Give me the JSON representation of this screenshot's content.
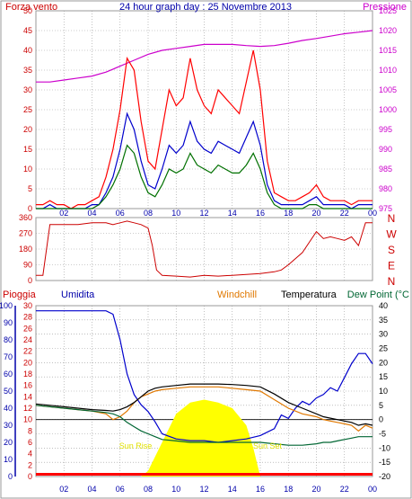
{
  "header": {
    "left": "Forza vento",
    "center": "24 hour graph day : 25 Novembre 2013",
    "right": "Pressione"
  },
  "bottom_header": {
    "rain": "Pioggia",
    "humidity": "Umidita",
    "windchill": "Windchill",
    "temperature": "Temperatura",
    "dewpoint": "Dew Point (°C"
  },
  "annotations": {
    "sunrise": "Sun Rise",
    "sunset": "Sun Set"
  },
  "colors": {
    "gust": "#ff0000",
    "avg_wind": "#0000cc",
    "speed": "#007000",
    "pressure": "#cc00cc",
    "direction": "#cc0000",
    "humidity": "#0000cc",
    "windchill": "#e07800",
    "temperature": "#000000",
    "dewpoint": "#006633",
    "rain": "#ff0000",
    "solar": "#ffff00",
    "grid": "#999999",
    "axis_blue": "#0000aa"
  },
  "chart_data": [
    {
      "type": "line",
      "title": "24 hour graph day : 25 Novembre 2013",
      "xlabel": "",
      "x_ticks": [
        "02",
        "04",
        "06",
        "08",
        "10",
        "12",
        "14",
        "16",
        "18",
        "20",
        "22",
        "00"
      ],
      "xlim": [
        0,
        24
      ],
      "y_left": {
        "label": "Forza vento",
        "ticks": [
          "0",
          "5",
          "10",
          "15",
          "20",
          "25",
          "30",
          "35",
          "40",
          "45",
          "50"
        ],
        "ylim": [
          0,
          50
        ]
      },
      "y_right": {
        "label": "Pressione",
        "ticks": [
          "975",
          "980",
          "985",
          "990",
          "995",
          "1000",
          "1005",
          "1010",
          "1015",
          "1020",
          "1025"
        ],
        "ylim": [
          975,
          1025
        ]
      },
      "series": [
        {
          "name": "Forza vento",
          "axis": "left",
          "x": [
            0,
            0.5,
            1,
            1.5,
            2,
            2.5,
            3,
            3.5,
            4,
            4.5,
            5,
            5.5,
            6,
            6.5,
            7,
            7.5,
            8,
            8.5,
            9,
            9.5,
            10,
            10.5,
            11,
            11.5,
            12,
            12.5,
            13,
            13.5,
            14,
            14.5,
            15,
            15.5,
            16,
            16.5,
            17,
            17.5,
            18,
            18.5,
            19,
            19.5,
            20,
            20.5,
            21,
            21.5,
            22,
            22.5,
            23,
            23.5,
            24
          ],
          "values": [
            1,
            1,
            2,
            1,
            1,
            0,
            1,
            1,
            2,
            3,
            8,
            15,
            25,
            38,
            35,
            22,
            12,
            10,
            20,
            30,
            26,
            28,
            38,
            30,
            26,
            24,
            30,
            28,
            26,
            24,
            32,
            40,
            30,
            12,
            4,
            3,
            2,
            2,
            3,
            4,
            6,
            3,
            2,
            2,
            2,
            1,
            2,
            2,
            2
          ]
        },
        {
          "name": "",
          "axis": "left",
          "x": [
            0,
            0.5,
            1,
            1.5,
            2,
            2.5,
            3,
            3.5,
            4,
            4.5,
            5,
            5.5,
            6,
            6.5,
            7,
            7.5,
            8,
            8.5,
            9,
            9.5,
            10,
            10.5,
            11,
            11.5,
            12,
            12.5,
            13,
            13.5,
            14,
            14.5,
            15,
            15.5,
            16,
            16.5,
            17,
            17.5,
            18,
            18.5,
            19,
            19.5,
            20,
            20.5,
            21,
            21.5,
            22,
            22.5,
            23,
            23.5,
            24
          ],
          "values": [
            0,
            0,
            1,
            0,
            0,
            0,
            0,
            0,
            1,
            1,
            4,
            8,
            15,
            24,
            20,
            12,
            6,
            5,
            10,
            16,
            14,
            16,
            22,
            17,
            15,
            14,
            17,
            16,
            15,
            14,
            18,
            22,
            16,
            6,
            2,
            1,
            1,
            1,
            1,
            2,
            3,
            1,
            1,
            1,
            1,
            0,
            1,
            1,
            1
          ]
        },
        {
          "name": "",
          "axis": "left",
          "x": [
            0,
            0.5,
            1,
            1.5,
            2,
            2.5,
            3,
            3.5,
            4,
            4.5,
            5,
            5.5,
            6,
            6.5,
            7,
            7.5,
            8,
            8.5,
            9,
            9.5,
            10,
            10.5,
            11,
            11.5,
            12,
            12.5,
            13,
            13.5,
            14,
            14.5,
            15,
            15.5,
            16,
            16.5,
            17,
            17.5,
            18,
            18.5,
            19,
            19.5,
            20,
            20.5,
            21,
            21.5,
            22,
            22.5,
            23,
            23.5,
            24
          ],
          "values": [
            0,
            0,
            0,
            0,
            0,
            0,
            0,
            0,
            0,
            1,
            3,
            6,
            10,
            16,
            14,
            8,
            4,
            3,
            6,
            10,
            9,
            10,
            14,
            11,
            10,
            9,
            11,
            10,
            9,
            9,
            11,
            14,
            10,
            4,
            1,
            0,
            0,
            0,
            0,
            1,
            1,
            0,
            0,
            0,
            0,
            0,
            0,
            0,
            0
          ]
        },
        {
          "name": "Pressione",
          "axis": "right",
          "x": [
            0,
            1,
            2,
            3,
            4,
            5,
            6,
            7,
            8,
            9,
            10,
            11,
            12,
            13,
            14,
            15,
            16,
            17,
            18,
            19,
            20,
            21,
            22,
            23,
            24
          ],
          "values": [
            1007,
            1007,
            1007.5,
            1008,
            1008.5,
            1009.5,
            1011,
            1012.5,
            1014,
            1015,
            1015.5,
            1016,
            1016.5,
            1016.5,
            1016.5,
            1016.2,
            1016,
            1016.2,
            1016.8,
            1017.5,
            1018,
            1018.6,
            1019.2,
            1019.6,
            1020
          ]
        }
      ]
    },
    {
      "type": "line",
      "xlim": [
        0,
        24
      ],
      "y_left": {
        "ticks": [
          "0",
          "90",
          "180",
          "270",
          "360"
        ],
        "ylim": [
          0,
          360
        ]
      },
      "y_right": {
        "ticks": [
          "N",
          "W",
          "S",
          "E",
          "N"
        ]
      },
      "series": [
        {
          "name": "",
          "x": [
            0,
            0.5,
            1,
            2,
            3,
            4,
            5,
            5.5,
            6,
            6.5,
            7,
            7.5,
            8,
            8.3,
            8.6,
            9,
            10,
            11,
            12,
            13,
            14,
            15,
            16,
            17,
            17.5,
            18,
            19,
            20,
            20.5,
            21,
            21.5,
            22,
            22.5,
            23,
            23.5,
            24
          ],
          "values": [
            30,
            30,
            320,
            320,
            320,
            330,
            330,
            320,
            330,
            340,
            330,
            320,
            300,
            200,
            60,
            30,
            25,
            20,
            30,
            25,
            30,
            35,
            40,
            50,
            60,
            90,
            160,
            280,
            240,
            250,
            240,
            230,
            250,
            200,
            330,
            330
          ]
        }
      ]
    },
    {
      "type": "line",
      "xlim": [
        0,
        24
      ],
      "y_left_outer": {
        "label": "Umidita",
        "ticks": [
          "0",
          "10",
          "20",
          "30",
          "40",
          "50",
          "60",
          "70",
          "80",
          "90",
          "100"
        ],
        "ylim": [
          0,
          100
        ]
      },
      "y_left_inner": {
        "label": "Pioggia",
        "ticks": [
          "0",
          "2",
          "4",
          "6",
          "8",
          "10",
          "12",
          "14",
          "16",
          "18",
          "20",
          "22",
          "24",
          "26",
          "28",
          "30"
        ],
        "ylim": [
          0,
          30
        ]
      },
      "y_right": {
        "ticks": [
          "-20",
          "-15",
          "-10",
          "-5",
          "0",
          "5",
          "10",
          "15",
          "20",
          "25",
          "30",
          "35",
          "40"
        ],
        "ylim": [
          -20,
          40
        ]
      },
      "x_ticks": [
        "02",
        "04",
        "06",
        "08",
        "10",
        "12",
        "14",
        "16",
        "18",
        "20",
        "22",
        "00"
      ],
      "series": [
        {
          "name": "Umidita",
          "axis": "left_outer",
          "x": [
            0,
            1,
            2,
            3,
            4,
            4.5,
            5,
            5.5,
            6,
            6.5,
            7,
            7.5,
            8,
            8.5,
            9,
            10,
            11,
            12,
            13,
            14,
            15,
            16,
            17,
            17.5,
            18,
            18.5,
            19,
            19.5,
            20,
            20.5,
            21,
            21.5,
            22,
            22.5,
            23,
            23.5,
            24
          ],
          "values": [
            97,
            97,
            97,
            97,
            97,
            97,
            97,
            95,
            80,
            60,
            48,
            42,
            38,
            32,
            25,
            22,
            21,
            21,
            20,
            21,
            22,
            24,
            28,
            36,
            34,
            40,
            44,
            42,
            46,
            48,
            52,
            50,
            58,
            66,
            72,
            72,
            66
          ]
        },
        {
          "name": "Temperatura",
          "axis": "right",
          "x": [
            0,
            1,
            2,
            3,
            4,
            5,
            5.5,
            6,
            6.5,
            7,
            7.5,
            8,
            8.5,
            9,
            10,
            11,
            12,
            13,
            14,
            15,
            16,
            17,
            18,
            19,
            20,
            20.5,
            21,
            21.5,
            22,
            22.5,
            23,
            23.5,
            24
          ],
          "values": [
            5.5,
            5,
            4.5,
            4,
            3.5,
            3.2,
            3,
            3.5,
            4.5,
            6,
            8,
            10,
            11,
            11.5,
            12,
            12.5,
            12.5,
            12.5,
            12.3,
            12,
            11.5,
            9,
            6,
            4,
            2,
            1,
            0.5,
            0,
            -0.5,
            -1,
            -2,
            -1.5,
            -2
          ]
        },
        {
          "name": "Windchill",
          "axis": "right",
          "x": [
            0,
            1,
            2,
            3,
            4,
            5,
            5.5,
            6,
            6.5,
            7,
            7.5,
            8,
            8.5,
            9,
            10,
            11,
            12,
            13,
            14,
            15,
            16,
            17,
            18,
            19,
            20,
            20.5,
            21,
            21.5,
            22,
            22.5,
            23,
            23.5,
            24
          ],
          "values": [
            5,
            4.5,
            4,
            3.5,
            3,
            2,
            0,
            1,
            3,
            6,
            8,
            9,
            10,
            10.5,
            11,
            11.5,
            11.5,
            11.5,
            11,
            10.5,
            10,
            7,
            4,
            2,
            1,
            0,
            -0.5,
            -1,
            -1.5,
            -2,
            -4,
            -2,
            -3
          ]
        },
        {
          "name": "Dew Point (°C",
          "axis": "right",
          "x": [
            0,
            1,
            2,
            3,
            4,
            5,
            5.5,
            6,
            6.5,
            7,
            7.5,
            8,
            8.5,
            9,
            10,
            11,
            12,
            13,
            14,
            15,
            16,
            17,
            18,
            19,
            20,
            20.5,
            21,
            21.5,
            22,
            22.5,
            23,
            23.5,
            24
          ],
          "values": [
            5,
            4.5,
            4,
            3.5,
            3,
            2.5,
            2,
            1,
            -1,
            -2.5,
            -4,
            -5,
            -6,
            -7,
            -7.5,
            -8,
            -8,
            -8,
            -8,
            -8,
            -8,
            -8.5,
            -9,
            -9,
            -8.5,
            -8,
            -8,
            -7.5,
            -7,
            -6.5,
            -6,
            -6,
            -6
          ]
        },
        {
          "name": "Pioggia",
          "axis": "left_inner",
          "x": [
            0,
            24
          ],
          "values": [
            0.4,
            0.4
          ]
        },
        {
          "name": "",
          "type": "area",
          "axis": "left_inner",
          "x": [
            0,
            7.5,
            8,
            9,
            10,
            11,
            12,
            13,
            14,
            15,
            15.5,
            16,
            24
          ],
          "values": [
            0,
            0,
            1,
            6,
            11,
            13,
            13.5,
            13,
            12,
            9,
            5,
            0,
            0
          ]
        }
      ],
      "annotations": [
        "Sun Rise",
        "Sun Set"
      ]
    }
  ]
}
